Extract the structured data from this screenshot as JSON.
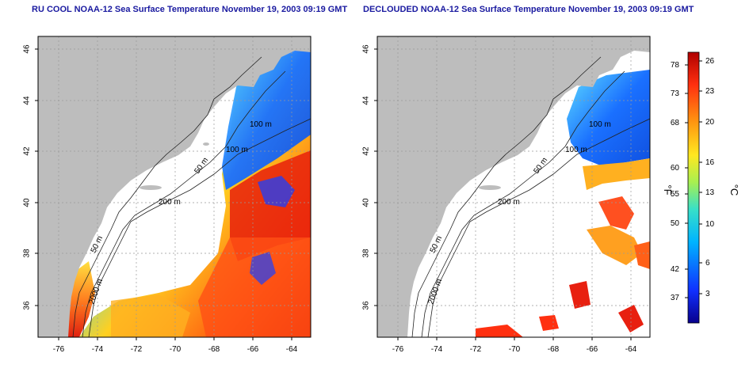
{
  "left_map": {
    "title": "RU COOL NOAA-12 Sea Surface Temperature November 19, 2003 09:19 GMT",
    "contours": [
      "50 m",
      "200 m",
      "100 m",
      "2000 m"
    ]
  },
  "right_map": {
    "title": "DECLOUDED NOAA-12 Sea Surface Temperature November 19, 2003 09:19 GMT",
    "contours": [
      "50 m",
      "200 m",
      "100 m",
      "2000 m"
    ]
  },
  "axes": {
    "x_ticks": [
      "-76",
      "-74",
      "-72",
      "-70",
      "-68",
      "-66",
      "-64"
    ],
    "y_ticks": [
      "36",
      "38",
      "40",
      "42",
      "44",
      "46"
    ]
  },
  "colorbar": {
    "f_label": "°F",
    "c_label": "°C",
    "f_ticks": [
      "78",
      "73",
      "68",
      "60",
      "55",
      "50",
      "42",
      "37"
    ],
    "c_ticks": [
      "26",
      "23",
      "20",
      "16",
      "13",
      "10",
      "6",
      "3"
    ]
  },
  "colors": {
    "land": "#bdbdbd",
    "ocean": "#ffffff",
    "title": "#1a1aa0",
    "gradient": [
      "#08008c",
      "#1030ff",
      "#00b4ff",
      "#38e0c8",
      "#a8f050",
      "#ffe820",
      "#ff9010",
      "#ff3010",
      "#b00000"
    ]
  }
}
